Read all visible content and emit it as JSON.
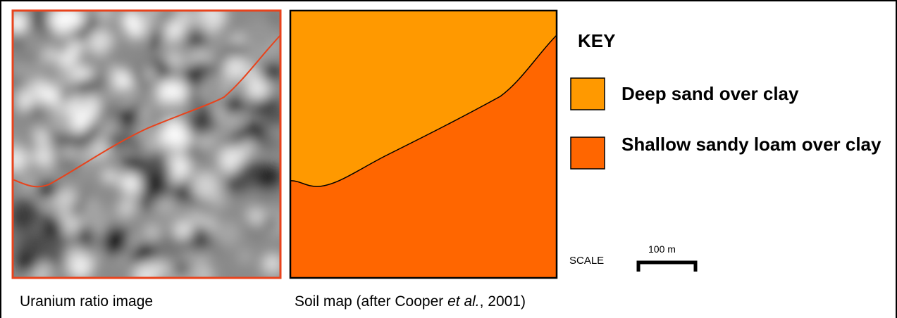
{
  "left_panel": {
    "caption": "Uranium ratio image"
  },
  "right_panel": {
    "caption_before": "Soil map (after Cooper ",
    "caption_italic": "et al.",
    "caption_after": ", 2001)"
  },
  "key": {
    "title": "KEY",
    "items": [
      {
        "label": "Deep sand over clay",
        "color": "#ff9900"
      },
      {
        "label": "Shallow sandy loam over clay",
        "color": "#ff6600"
      }
    ]
  },
  "scale": {
    "label": "SCALE",
    "distance": "100 m"
  }
}
